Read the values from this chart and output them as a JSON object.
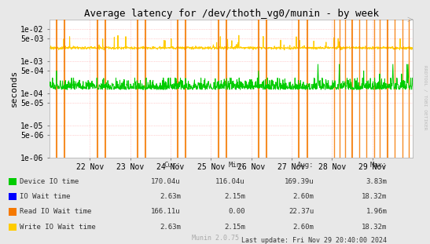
{
  "title": "Average latency for /dev/thoth_vg0/munin - by week",
  "ylabel": "seconds",
  "watermark": "RRDTOOL / TOBI OETIKER",
  "munin_version": "Munin 2.0.75",
  "last_update": "Last update: Fri Nov 29 20:40:00 2024",
  "bg_color": "#e8e8e8",
  "plot_bg_color": "#ffffff",
  "grid_color": "#ffaaaa",
  "ylim_min": 1e-06,
  "ylim_max": 0.02,
  "xlim_min": 0,
  "xlim_max": 9,
  "x_ticks_labels": [
    "22 Nov",
    "23 Nov",
    "24 Nov",
    "25 Nov",
    "26 Nov",
    "27 Nov",
    "28 Nov",
    "29 Nov"
  ],
  "x_ticks_days": [
    1,
    2,
    3,
    4,
    5,
    6,
    7,
    8
  ],
  "y_major_ticks": [
    1e-06,
    5e-06,
    1e-05,
    5e-05,
    0.0001,
    0.0005,
    0.001,
    0.005,
    0.01
  ],
  "y_major_labels": [
    "1e-06",
    "5e-06",
    "1e-05",
    "5e-05",
    "1e-04",
    "5e-04",
    "1e-03",
    "5e-03",
    "1e-02"
  ],
  "legend_entries": [
    {
      "label": "Device IO time",
      "color": "#00cc00"
    },
    {
      "label": "IO Wait time",
      "color": "#0000ff"
    },
    {
      "label": "Read IO Wait time",
      "color": "#f57900"
    },
    {
      "label": "Write IO Wait time",
      "color": "#ffcc00"
    }
  ],
  "legend_stats": [
    {
      "cur": "170.04u",
      "min": "116.04u",
      "avg": "169.39u",
      "max": "3.83m"
    },
    {
      "cur": "2.63m",
      "min": "2.15m",
      "avg": "2.60m",
      "max": "18.32m"
    },
    {
      "cur": "166.11u",
      "min": "0.00",
      "avg": "22.37u",
      "max": "1.96m"
    },
    {
      "cur": "2.63m",
      "min": "2.15m",
      "avg": "2.60m",
      "max": "18.32m"
    }
  ],
  "write_io_base": 0.0026,
  "device_io_base": 0.00013,
  "orange_spikes": [
    0.18,
    0.38,
    1.18,
    1.38,
    2.18,
    2.38,
    3.18,
    3.38,
    4.18,
    4.38,
    5.18,
    5.38,
    6.18,
    6.38,
    7.05,
    7.18,
    7.32,
    7.5,
    7.68,
    7.85,
    8.05,
    8.18,
    8.38,
    8.55,
    8.75,
    8.9
  ],
  "orange_spike_widths": [
    1.5,
    1.5,
    1.5,
    1.5,
    1.5,
    1.5,
    1.5,
    1.5,
    1.5,
    1.5,
    1.5,
    1.5,
    1.5,
    1.5,
    1.0,
    1.0,
    1.0,
    1.5,
    1.0,
    1.0,
    1.0,
    1.0,
    1.5,
    1.0,
    1.0,
    1.0
  ]
}
